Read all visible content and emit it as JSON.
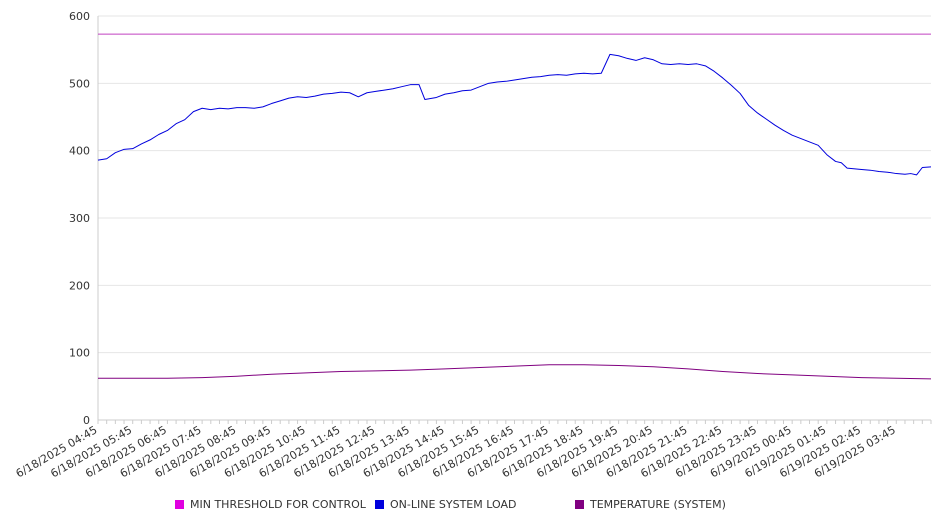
{
  "chart_data": {
    "type": "line",
    "title": "",
    "xlabel": "",
    "ylabel": "",
    "ylim": [
      0,
      600
    ],
    "yticks": [
      0,
      100,
      200,
      300,
      400,
      500,
      600
    ],
    "grid": true,
    "legend_position": "bottom",
    "x_tick_labels": [
      "6/18/2025 04:45",
      "6/18/2025 05:45",
      "6/18/2025 06:45",
      "6/18/2025 07:45",
      "6/18/2025 08:45",
      "6/18/2025 09:45",
      "6/18/2025 10:45",
      "6/18/2025 11:45",
      "6/18/2025 12:45",
      "6/18/2025 13:45",
      "6/18/2025 14:45",
      "6/18/2025 15:45",
      "6/18/2025 16:45",
      "6/18/2025 17:45",
      "6/18/2025 18:45",
      "6/18/2025 19:45",
      "6/18/2025 20:45",
      "6/18/2025 21:45",
      "6/18/2025 22:45",
      "6/18/2025 23:45",
      "6/19/2025 00:45",
      "6/19/2025 01:45",
      "6/19/2025 02:45",
      "6/19/2025 03:45"
    ],
    "x_start": "6/18/2025 04:45",
    "x_end": "6/19/2025 04:45",
    "series": [
      {
        "name": "MIN THRESHOLD FOR CONTROL",
        "color": "#e000e0",
        "line_color": "#c040c0",
        "points": [
          [
            "6/18/2025 04:45",
            573
          ],
          [
            "6/19/2025 04:45",
            573
          ]
        ]
      },
      {
        "name": "ON-LINE SYSTEM LOAD",
        "color": "#0000dd",
        "line_color": "#0000dd",
        "points": [
          [
            "6/18/2025 04:45",
            386
          ],
          [
            "6/18/2025 05:00",
            388
          ],
          [
            "6/18/2025 05:15",
            397
          ],
          [
            "6/18/2025 05:30",
            402
          ],
          [
            "6/18/2025 05:45",
            403
          ],
          [
            "6/18/2025 06:00",
            410
          ],
          [
            "6/18/2025 06:15",
            416
          ],
          [
            "6/18/2025 06:30",
            424
          ],
          [
            "6/18/2025 06:45",
            430
          ],
          [
            "6/18/2025 07:00",
            440
          ],
          [
            "6/18/2025 07:15",
            446
          ],
          [
            "6/18/2025 07:30",
            458
          ],
          [
            "6/18/2025 07:45",
            463
          ],
          [
            "6/18/2025 08:00",
            461
          ],
          [
            "6/18/2025 08:15",
            463
          ],
          [
            "6/18/2025 08:30",
            462
          ],
          [
            "6/18/2025 08:45",
            464
          ],
          [
            "6/18/2025 09:00",
            464
          ],
          [
            "6/18/2025 09:15",
            463
          ],
          [
            "6/18/2025 09:30",
            465
          ],
          [
            "6/18/2025 09:45",
            470
          ],
          [
            "6/18/2025 10:00",
            474
          ],
          [
            "6/18/2025 10:15",
            478
          ],
          [
            "6/18/2025 10:30",
            480
          ],
          [
            "6/18/2025 10:45",
            479
          ],
          [
            "6/18/2025 11:00",
            481
          ],
          [
            "6/18/2025 11:15",
            484
          ],
          [
            "6/18/2025 11:30",
            485
          ],
          [
            "6/18/2025 11:45",
            487
          ],
          [
            "6/18/2025 12:00",
            486
          ],
          [
            "6/18/2025 12:15",
            480
          ],
          [
            "6/18/2025 12:30",
            486
          ],
          [
            "6/18/2025 12:45",
            488
          ],
          [
            "6/18/2025 13:00",
            490
          ],
          [
            "6/18/2025 13:15",
            492
          ],
          [
            "6/18/2025 13:30",
            495
          ],
          [
            "6/18/2025 13:45",
            498
          ],
          [
            "6/18/2025 14:00",
            498
          ],
          [
            "6/18/2025 14:10",
            476
          ],
          [
            "6/18/2025 14:30",
            479
          ],
          [
            "6/18/2025 14:45",
            484
          ],
          [
            "6/18/2025 15:00",
            486
          ],
          [
            "6/18/2025 15:15",
            489
          ],
          [
            "6/18/2025 15:30",
            490
          ],
          [
            "6/18/2025 15:45",
            495
          ],
          [
            "6/18/2025 16:00",
            500
          ],
          [
            "6/18/2025 16:15",
            502
          ],
          [
            "6/18/2025 16:30",
            503
          ],
          [
            "6/18/2025 16:45",
            505
          ],
          [
            "6/18/2025 17:00",
            507
          ],
          [
            "6/18/2025 17:15",
            509
          ],
          [
            "6/18/2025 17:30",
            510
          ],
          [
            "6/18/2025 17:45",
            512
          ],
          [
            "6/18/2025 18:00",
            513
          ],
          [
            "6/18/2025 18:15",
            512
          ],
          [
            "6/18/2025 18:30",
            514
          ],
          [
            "6/18/2025 18:45",
            515
          ],
          [
            "6/18/2025 19:00",
            514
          ],
          [
            "6/18/2025 19:15",
            515
          ],
          [
            "6/18/2025 19:30",
            543
          ],
          [
            "6/18/2025 19:45",
            541
          ],
          [
            "6/18/2025 20:00",
            537
          ],
          [
            "6/18/2025 20:15",
            534
          ],
          [
            "6/18/2025 20:30",
            538
          ],
          [
            "6/18/2025 20:45",
            535
          ],
          [
            "6/18/2025 21:00",
            529
          ],
          [
            "6/18/2025 21:15",
            528
          ],
          [
            "6/18/2025 21:30",
            529
          ],
          [
            "6/18/2025 21:45",
            528
          ],
          [
            "6/18/2025 22:00",
            529
          ],
          [
            "6/18/2025 22:15",
            526
          ],
          [
            "6/18/2025 22:30",
            518
          ],
          [
            "6/18/2025 22:45",
            508
          ],
          [
            "6/18/2025 23:00",
            497
          ],
          [
            "6/18/2025 23:15",
            485
          ],
          [
            "6/18/2025 23:30",
            467
          ],
          [
            "6/18/2025 23:45",
            456
          ],
          [
            "6/19/2025 00:00",
            447
          ],
          [
            "6/19/2025 00:15",
            438
          ],
          [
            "6/19/2025 00:30",
            430
          ],
          [
            "6/19/2025 00:45",
            423
          ],
          [
            "6/19/2025 01:00",
            418
          ],
          [
            "6/19/2025 01:15",
            413
          ],
          [
            "6/19/2025 01:30",
            408
          ],
          [
            "6/19/2025 01:45",
            394
          ],
          [
            "6/19/2025 02:00",
            384
          ],
          [
            "6/19/2025 02:10",
            382
          ],
          [
            "6/19/2025 02:20",
            374
          ],
          [
            "6/19/2025 02:45",
            372
          ],
          [
            "6/19/2025 03:00",
            371
          ],
          [
            "6/19/2025 03:15",
            369
          ],
          [
            "6/19/2025 03:30",
            368
          ],
          [
            "6/19/2025 03:45",
            366
          ],
          [
            "6/19/2025 04:00",
            365
          ],
          [
            "6/19/2025 04:10",
            366
          ],
          [
            "6/19/2025 04:20",
            364
          ],
          [
            "6/19/2025 04:30",
            375
          ],
          [
            "6/19/2025 04:45",
            376
          ]
        ]
      },
      {
        "name": "TEMPERATURE (SYSTEM)",
        "color": "#800080",
        "line_color": "#800080",
        "points": [
          [
            "6/18/2025 04:45",
            62
          ],
          [
            "6/18/2025 05:45",
            62
          ],
          [
            "6/18/2025 06:45",
            62
          ],
          [
            "6/18/2025 07:45",
            63
          ],
          [
            "6/18/2025 08:45",
            65
          ],
          [
            "6/18/2025 09:45",
            68
          ],
          [
            "6/18/2025 10:45",
            70
          ],
          [
            "6/18/2025 11:45",
            72
          ],
          [
            "6/18/2025 12:45",
            73
          ],
          [
            "6/18/2025 13:45",
            74
          ],
          [
            "6/18/2025 14:45",
            76
          ],
          [
            "6/18/2025 15:45",
            78
          ],
          [
            "6/18/2025 16:45",
            80
          ],
          [
            "6/18/2025 17:45",
            82
          ],
          [
            "6/18/2025 18:45",
            82
          ],
          [
            "6/18/2025 19:45",
            81
          ],
          [
            "6/18/2025 20:45",
            79
          ],
          [
            "6/18/2025 21:45",
            76
          ],
          [
            "6/18/2025 22:45",
            72
          ],
          [
            "6/18/2025 23:45",
            69
          ],
          [
            "6/19/2025 00:45",
            67
          ],
          [
            "6/19/2025 01:45",
            65
          ],
          [
            "6/19/2025 02:45",
            63
          ],
          [
            "6/19/2025 03:45",
            62
          ],
          [
            "6/19/2025 04:45",
            61
          ]
        ]
      }
    ]
  }
}
